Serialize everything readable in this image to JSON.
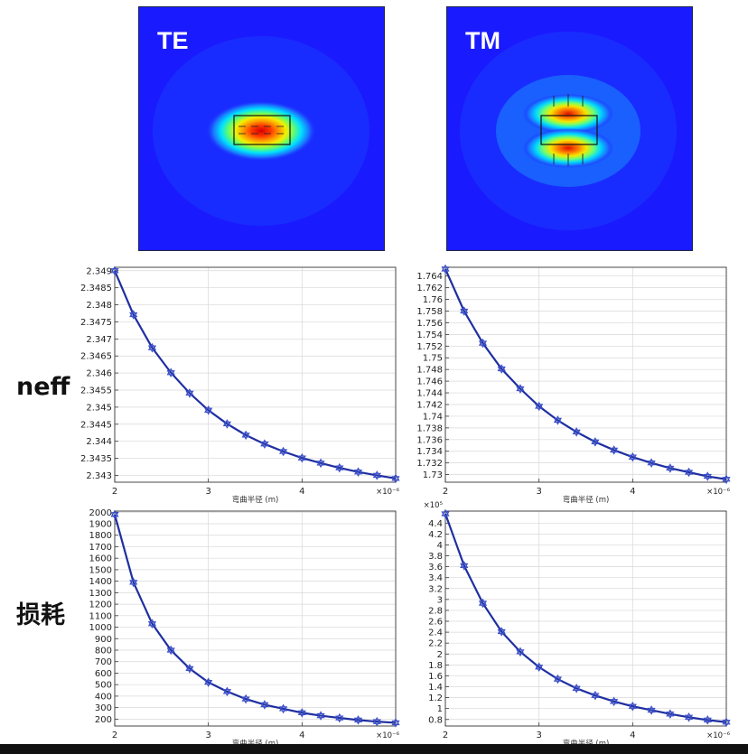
{
  "fields": [
    {
      "label": "TE",
      "mode": "te"
    },
    {
      "label": "TM",
      "mode": "tm"
    }
  ],
  "row_labels": {
    "neff": "neff",
    "loss": "损耗"
  },
  "colors": {
    "line": "#1f2fa0",
    "marker": "#3a4ec8",
    "grid": "#d8d8d8",
    "axis": "#333333",
    "field_bg": "#1a1aff"
  },
  "chart_data": [
    {
      "type": "line",
      "xlabel": "弯曲半径 (m)",
      "x_multiplier": "×10⁻⁶",
      "y_multiplier": "",
      "xlim": [
        2,
        5
      ],
      "ylim": [
        2.3428,
        2.3491
      ],
      "xticks": [
        2,
        3,
        4
      ],
      "yticks": [
        2.343,
        2.3435,
        2.344,
        2.3445,
        2.345,
        2.3455,
        2.346,
        2.3465,
        2.347,
        2.3475,
        2.348,
        2.3485,
        2.349
      ],
      "x": [
        2.0,
        2.2,
        2.4,
        2.6,
        2.8,
        3.0,
        3.2,
        3.4,
        3.6,
        3.8,
        4.0,
        4.2,
        4.4,
        4.6,
        4.8,
        5.0
      ],
      "y": [
        2.349,
        2.34771,
        2.34674,
        2.34601,
        2.34541,
        2.34491,
        2.34451,
        2.34418,
        2.34392,
        2.3437,
        2.34351,
        2.34336,
        2.34322,
        2.3431,
        2.343,
        2.34291
      ],
      "grid": true
    },
    {
      "type": "line",
      "xlabel": "弯曲半径 (m)",
      "x_multiplier": "×10⁻⁶",
      "y_multiplier": "",
      "xlim": [
        2,
        5
      ],
      "ylim": [
        1.7287,
        1.7655
      ],
      "xticks": [
        2,
        3,
        4
      ],
      "yticks": [
        1.73,
        1.732,
        1.734,
        1.736,
        1.738,
        1.74,
        1.742,
        1.744,
        1.746,
        1.748,
        1.75,
        1.752,
        1.754,
        1.756,
        1.758,
        1.76,
        1.762,
        1.764
      ],
      "x": [
        2.0,
        2.2,
        2.4,
        2.6,
        2.8,
        3.0,
        3.2,
        3.4,
        3.6,
        3.8,
        4.0,
        4.2,
        4.4,
        4.6,
        4.8,
        5.0
      ],
      "y": [
        1.7652,
        1.758,
        1.7525,
        1.7481,
        1.7447,
        1.7417,
        1.7393,
        1.7373,
        1.7356,
        1.7342,
        1.733,
        1.732,
        1.7311,
        1.7304,
        1.7297,
        1.7292
      ],
      "grid": true
    },
    {
      "type": "line",
      "xlabel": "弯曲半径 (m)",
      "x_multiplier": "×10⁻⁶",
      "y_multiplier": "",
      "xlim": [
        2,
        5
      ],
      "ylim": [
        140,
        2010
      ],
      "xticks": [
        2,
        3,
        4
      ],
      "yticks": [
        200,
        300,
        400,
        500,
        600,
        700,
        800,
        900,
        1000,
        1100,
        1200,
        1300,
        1400,
        1500,
        1600,
        1700,
        1800,
        1900,
        2000
      ],
      "x": [
        2.0,
        2.2,
        2.4,
        2.6,
        2.8,
        3.0,
        3.2,
        3.4,
        3.6,
        3.8,
        4.0,
        4.2,
        4.4,
        4.6,
        4.8,
        5.0
      ],
      "y": [
        1980,
        1390,
        1030,
        800,
        640,
        520,
        440,
        375,
        325,
        290,
        255,
        230,
        210,
        192,
        178,
        168
      ],
      "grid": true
    },
    {
      "type": "line",
      "xlabel": "弯曲半径 (m)",
      "x_multiplier": "×10⁻⁶",
      "y_multiplier": "×10⁵",
      "xlim": [
        2,
        5
      ],
      "ylim": [
        0.68,
        4.62
      ],
      "xticks": [
        2,
        3,
        4
      ],
      "yticks": [
        0.8,
        1,
        1.2,
        1.4,
        1.6,
        1.8,
        2,
        2.2,
        2.4,
        2.6,
        2.8,
        3,
        3.2,
        3.4,
        3.6,
        3.8,
        4,
        4.2,
        4.4
      ],
      "x": [
        2.0,
        2.2,
        2.4,
        2.6,
        2.8,
        3.0,
        3.2,
        3.4,
        3.6,
        3.8,
        4.0,
        4.2,
        4.4,
        4.6,
        4.8,
        5.0
      ],
      "y": [
        4.57,
        3.62,
        2.93,
        2.41,
        2.04,
        1.76,
        1.54,
        1.37,
        1.24,
        1.13,
        1.04,
        0.97,
        0.9,
        0.84,
        0.79,
        0.75
      ],
      "grid": true
    }
  ]
}
